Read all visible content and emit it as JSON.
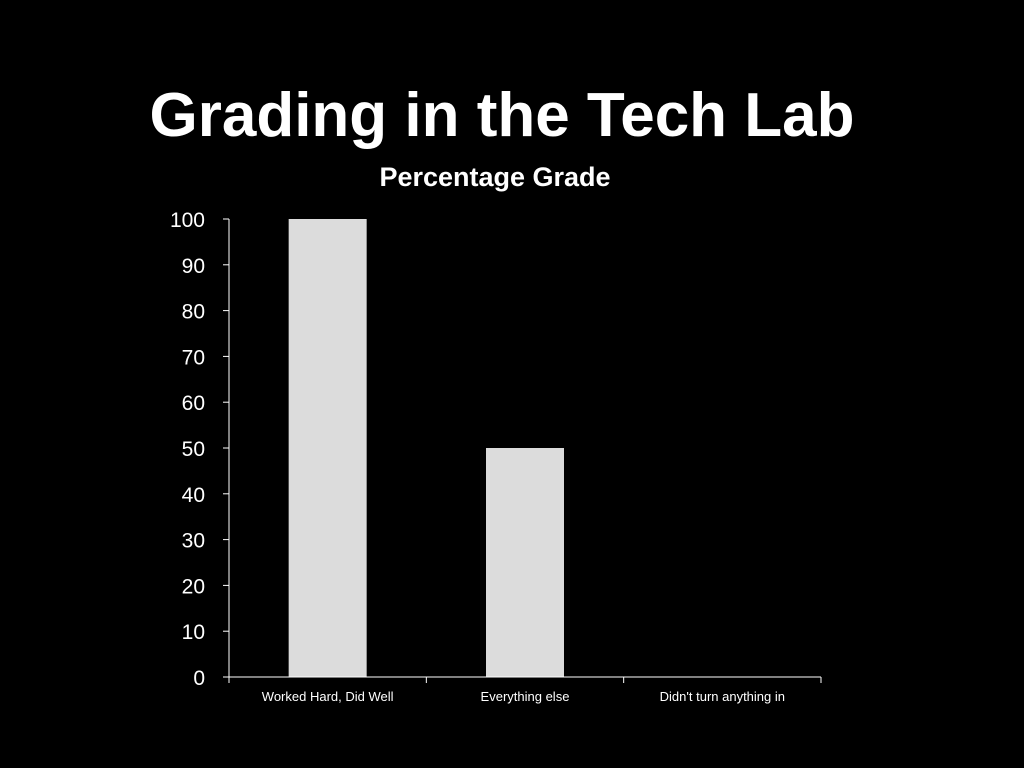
{
  "slide": {
    "title": "Grading in the Tech Lab"
  },
  "colors": {
    "background": "#000000",
    "text": "#ffffff",
    "bar": "#dcdcdc",
    "axis": "#ffffff"
  },
  "chart_data": {
    "type": "bar",
    "title": "Percentage Grade",
    "xlabel": "",
    "ylabel": "",
    "categories": [
      "Worked Hard, Did Well",
      "Everything else",
      "Didn't turn anything in"
    ],
    "values": [
      100,
      50,
      0
    ],
    "ylim": [
      0,
      100
    ],
    "yticks": [
      0,
      10,
      20,
      30,
      40,
      50,
      60,
      70,
      80,
      90,
      100
    ],
    "grid": false,
    "legend": "none"
  }
}
